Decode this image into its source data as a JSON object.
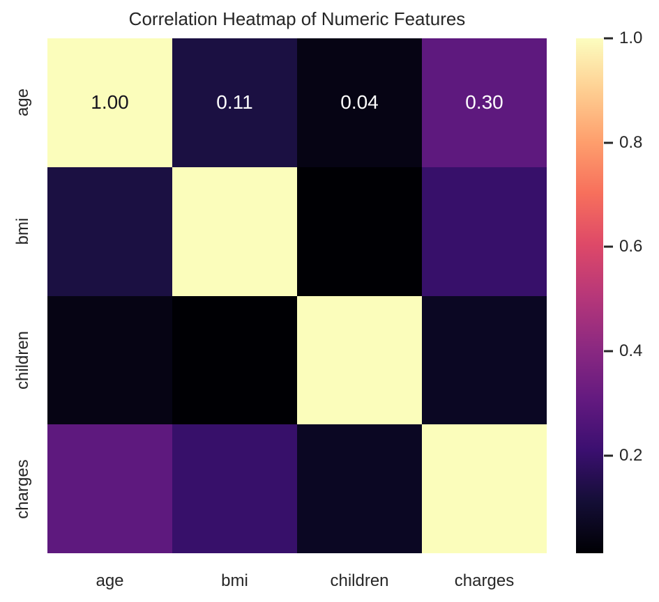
{
  "chart_data": {
    "type": "heatmap",
    "title": "Correlation Heatmap of Numeric Features",
    "x_labels": [
      "age",
      "bmi",
      "children",
      "charges"
    ],
    "y_labels": [
      "age",
      "bmi",
      "children",
      "charges"
    ],
    "values": [
      [
        1.0,
        0.11,
        0.04,
        0.3
      ],
      [
        0.11,
        1.0,
        0.01,
        0.2
      ],
      [
        0.04,
        0.01,
        1.0,
        0.07
      ],
      [
        0.3,
        0.2,
        0.07,
        1.0
      ]
    ],
    "annotations": [
      [
        "1.00",
        "0.11",
        "0.04",
        "0.30"
      ],
      [
        "",
        "",
        "",
        ""
      ],
      [
        "",
        "",
        "",
        ""
      ],
      [
        "",
        "",
        "",
        ""
      ]
    ],
    "annotation_colors": [
      [
        "#15131d",
        "#ffffff",
        "#ffffff",
        "#ffffff"
      ],
      [
        "",
        "",
        "",
        ""
      ],
      [
        "",
        "",
        "",
        ""
      ],
      [
        "",
        "",
        "",
        ""
      ]
    ],
    "cell_colors": [
      [
        "#fbfdbb",
        "#1b1042",
        "#060414",
        "#5e197e"
      ],
      [
        "#1b1042",
        "#fbfdbb",
        "#000004",
        "#37106a"
      ],
      [
        "#060414",
        "#000004",
        "#fbfdbb",
        "#0b0723"
      ],
      [
        "#5e197e",
        "#37106a",
        "#0b0723",
        "#fbfdbb"
      ]
    ],
    "colormap": "magma",
    "colorbar": {
      "position": "right",
      "tick_labels": [
        "1.0",
        "0.8",
        "0.6",
        "0.4",
        "0.2"
      ],
      "tick_values": [
        1.0,
        0.8,
        0.6,
        0.4,
        0.2
      ],
      "vmin": 0.013,
      "vmax": 1.0,
      "gradient_top_to_bottom": [
        "#fcfdbf",
        "#fecf92",
        "#fe9f6d",
        "#f7705c",
        "#de4968",
        "#b73779",
        "#8c2981",
        "#641a80",
        "#3b0f70",
        "#140e36",
        "#000004"
      ]
    },
    "grid": false
  },
  "colors": {
    "background": "#ffffff",
    "text": "#262626",
    "tick_mark": "#262626"
  }
}
